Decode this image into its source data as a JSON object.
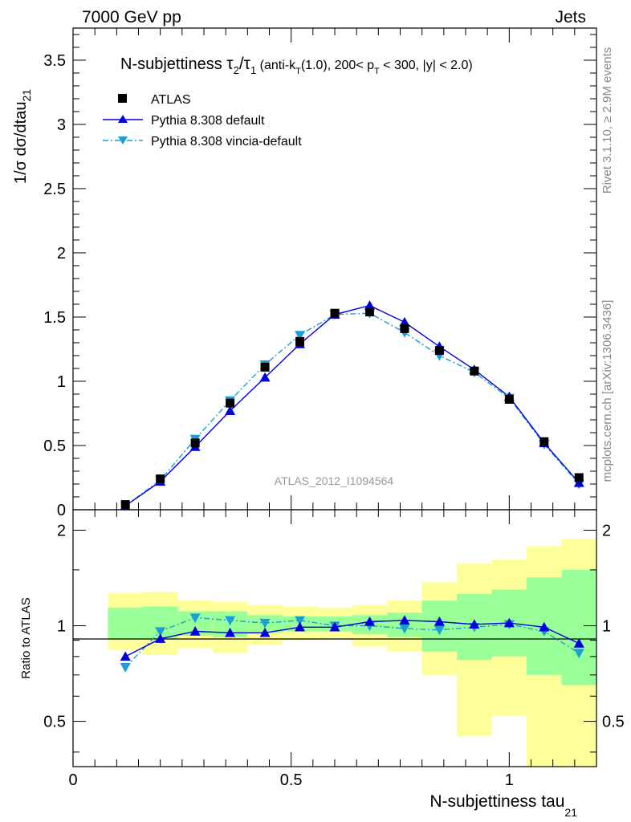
{
  "header": {
    "left": "7000 GeV pp",
    "right": "Jets"
  },
  "side": {
    "rivet": "Rivet 3.1.10, ≥ 2.9M events",
    "mcplots": "mcplots.cern.ch [arXiv:1306.3436]"
  },
  "chart_data": [
    {
      "type": "scatter",
      "title": "N-subjettiness τ₂/τ₁ (anti-k_T(1.0), 200< p_T < 300, |y| < 2.0)",
      "title_main": "N-subjettiness ",
      "title_t2": "τ",
      "title_t2_sub": "2",
      "title_slash": "/",
      "title_t1": "τ",
      "title_t1_sub": "1",
      "title_rest_a": " (anti-k",
      "title_rest_a_sub": "T",
      "title_rest_b": "(1.0), 200< p",
      "title_rest_b_sub": "T",
      "title_rest_c": " < 300, |y| < 2.0)",
      "ylabel": "1/σ dσ/dtau",
      "ylabel_sub": "21",
      "watermark": "ATLAS_2012_I1094564",
      "xlim": [
        0,
        1.2
      ],
      "ylim": [
        0,
        3.75
      ],
      "yticks": [
        "0",
        "0.5",
        "1",
        "1.5",
        "2",
        "2.5",
        "3",
        "3.5"
      ],
      "x": [
        0.12,
        0.2,
        0.28,
        0.36,
        0.44,
        0.52,
        0.6,
        0.68,
        0.76,
        0.84,
        0.92,
        1.0,
        1.08,
        1.16
      ],
      "series": [
        {
          "name": "ATLAS",
          "marker": "square",
          "color": "#000000",
          "values": [
            0.04,
            0.24,
            0.52,
            0.83,
            1.11,
            1.31,
            1.53,
            1.54,
            1.41,
            1.24,
            1.08,
            0.86,
            0.53,
            0.25
          ]
        },
        {
          "name": "Pythia 8.308 default",
          "marker": "triangle-up",
          "color": "#0000dd",
          "line": "solid",
          "values": [
            0.03,
            0.22,
            0.49,
            0.77,
            1.03,
            1.29,
            1.52,
            1.59,
            1.46,
            1.27,
            1.09,
            0.88,
            0.52,
            0.21
          ]
        },
        {
          "name": "Pythia 8.308 vincia-default",
          "marker": "triangle-down",
          "color": "#1a9ed6",
          "line": "dashdot",
          "values": [
            0.03,
            0.23,
            0.55,
            0.85,
            1.13,
            1.36,
            1.52,
            1.53,
            1.38,
            1.2,
            1.07,
            0.87,
            0.51,
            0.2
          ]
        }
      ]
    },
    {
      "type": "line",
      "ylabel": "Ratio to ATLAS",
      "xlabel": "N-subjettiness tau",
      "xlabel_sub": "21",
      "xlim": [
        0,
        1.2
      ],
      "ylim": [
        0.36,
        2.32
      ],
      "xticks": [
        "0",
        "0.5",
        "1"
      ],
      "yticks": [
        "0.5",
        "1",
        "2"
      ],
      "bins": [
        [
          0.08,
          0.16
        ],
        [
          0.16,
          0.24
        ],
        [
          0.24,
          0.32
        ],
        [
          0.32,
          0.4
        ],
        [
          0.4,
          0.48
        ],
        [
          0.48,
          0.56
        ],
        [
          0.56,
          0.64
        ],
        [
          0.64,
          0.72
        ],
        [
          0.72,
          0.8
        ],
        [
          0.8,
          0.88
        ],
        [
          0.88,
          0.96
        ],
        [
          0.96,
          1.04
        ],
        [
          1.04,
          1.12
        ],
        [
          1.12,
          1.2
        ]
      ],
      "band_2sigma": [
        [
          0.84,
          1.27
        ],
        [
          0.81,
          1.28
        ],
        [
          0.85,
          1.2
        ],
        [
          0.82,
          1.19
        ],
        [
          0.87,
          1.16
        ],
        [
          0.9,
          1.15
        ],
        [
          0.91,
          1.14
        ],
        [
          0.86,
          1.16
        ],
        [
          0.83,
          1.2
        ],
        [
          0.7,
          1.37
        ],
        [
          0.45,
          1.57
        ],
        [
          0.52,
          1.62
        ],
        [
          0.36,
          1.78
        ],
        [
          0.36,
          1.88
        ]
      ],
      "band_1sigma": [
        [
          0.91,
          1.14
        ],
        [
          0.91,
          1.15
        ],
        [
          0.93,
          1.11
        ],
        [
          0.92,
          1.11
        ],
        [
          0.95,
          1.08
        ],
        [
          0.96,
          1.07
        ],
        [
          0.96,
          1.07
        ],
        [
          0.94,
          1.08
        ],
        [
          0.92,
          1.1
        ],
        [
          0.83,
          1.2
        ],
        [
          0.78,
          1.26
        ],
        [
          0.8,
          1.3
        ],
        [
          0.7,
          1.42
        ],
        [
          0.65,
          1.5
        ]
      ],
      "band_colors": {
        "outer": "#ffff99",
        "inner": "#99ff99"
      },
      "series": [
        {
          "name": "Pythia 8.308 default",
          "marker": "triangle-up",
          "color": "#0000dd",
          "values": [
            0.8,
            0.91,
            0.96,
            0.95,
            0.95,
            0.99,
            0.99,
            1.03,
            1.04,
            1.03,
            1.01,
            1.02,
            0.99,
            0.88
          ]
        },
        {
          "name": "Pythia 8.308 vincia-default",
          "marker": "triangle-down",
          "color": "#1a9ed6",
          "values": [
            0.74,
            0.96,
            1.06,
            1.04,
            1.02,
            1.04,
            1.0,
            1.0,
            0.98,
            0.97,
            0.99,
            1.01,
            0.96,
            0.82
          ]
        }
      ]
    }
  ]
}
